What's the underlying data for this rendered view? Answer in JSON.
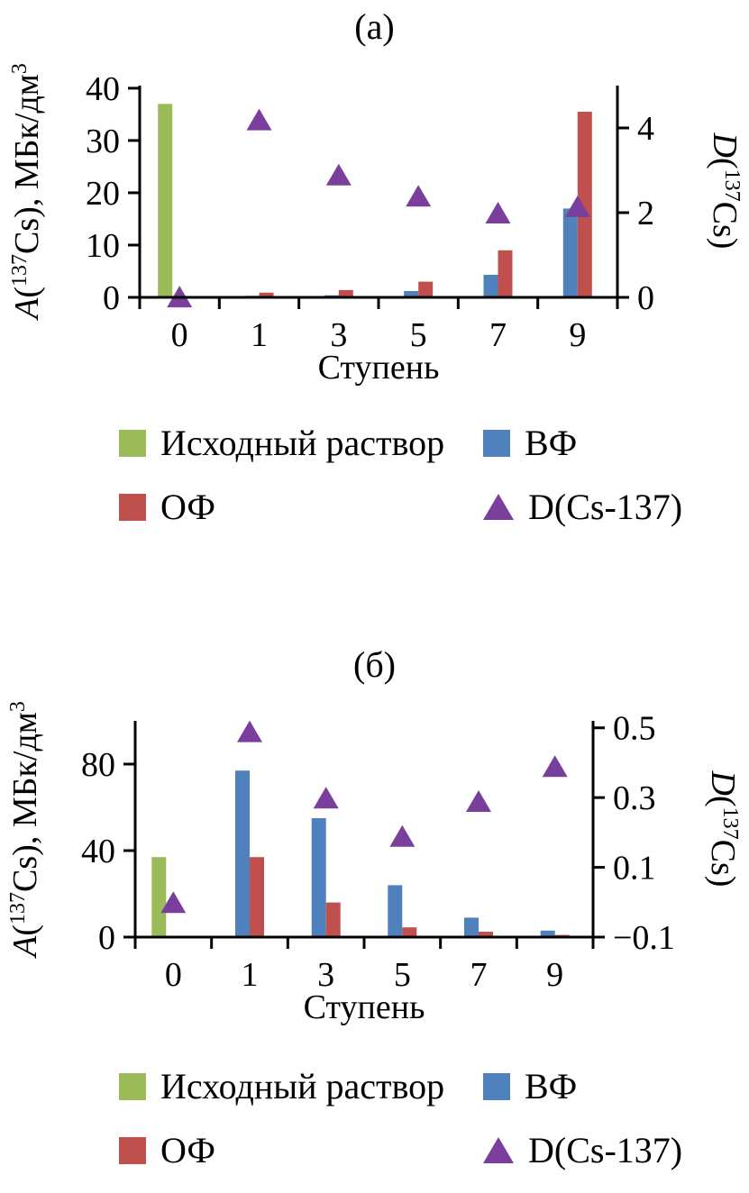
{
  "figure": {
    "background": "#ffffff",
    "text_color": "#000000",
    "axis_color": "#000000"
  },
  "chart_data": [
    {
      "type": "bar+scatter",
      "panel": "а",
      "title": "(а)",
      "xlabel": "Ступень",
      "categories": [
        "0",
        "1",
        "3",
        "5",
        "7",
        "9"
      ],
      "left_axis": {
        "label": "A(137Cs), МБк/дм3",
        "label_runs": [
          {
            "t": "A",
            "i": true
          },
          {
            "t": "("
          },
          {
            "t": "137",
            "sup": true
          },
          {
            "t": "Cs), МБк/дм"
          },
          {
            "t": "3",
            "sup": true
          }
        ],
        "min": 0,
        "max": 40.5,
        "ticks": [
          {
            "v": 0,
            "t": "0"
          },
          {
            "v": 10,
            "t": "10"
          },
          {
            "v": 20,
            "t": "20"
          },
          {
            "v": 30,
            "t": "30"
          },
          {
            "v": 40,
            "t": "40"
          }
        ]
      },
      "right_axis": {
        "label": "D(137Cs)",
        "label_runs": [
          {
            "t": "D",
            "i": true
          },
          {
            "t": "("
          },
          {
            "t": "137",
            "sup": true
          },
          {
            "t": "Cs)"
          }
        ],
        "min": 0,
        "max": 5,
        "ticks": [
          {
            "v": 0,
            "t": "0"
          },
          {
            "v": 2,
            "t": "2"
          },
          {
            "v": 4,
            "t": "4"
          }
        ]
      },
      "bar_series": [
        {
          "name": "Исходный раствор",
          "color": "#9bbb59",
          "axis": "left",
          "values": [
            37,
            null,
            null,
            null,
            null,
            null
          ]
        },
        {
          "name": "ВФ",
          "color": "#4f81bd",
          "axis": "left",
          "values": [
            0.2,
            0.3,
            0.4,
            1.2,
            4.3,
            17
          ]
        },
        {
          "name": "ОФ",
          "color": "#c0504d",
          "axis": "left",
          "values": [
            0.2,
            0.9,
            1.4,
            3,
            9,
            35.5
          ]
        }
      ],
      "scatter_series": [
        {
          "name": "D(Cs-137)",
          "color": "#7a3f9d",
          "axis": "right",
          "values": [
            0.02,
            4.2,
            2.9,
            2.4,
            2.0,
            2.15
          ]
        }
      ],
      "legend": [
        {
          "label": "Исходный раствор",
          "marker": "square",
          "color": "#9bbb59"
        },
        {
          "label": "ВФ",
          "marker": "square",
          "color": "#4f81bd"
        },
        {
          "label": "ОФ",
          "marker": "square",
          "color": "#c0504d"
        },
        {
          "label": "D(Cs-137)",
          "marker": "triangle",
          "color": "#7a3f9d"
        }
      ]
    },
    {
      "type": "bar+scatter",
      "panel": "б",
      "title": "(б)",
      "xlabel": "Ступень",
      "categories": [
        "0",
        "1",
        "3",
        "5",
        "7",
        "9"
      ],
      "left_axis": {
        "label": "A(137Cs), МБк/дм3",
        "label_runs": [
          {
            "t": "A",
            "i": true
          },
          {
            "t": "("
          },
          {
            "t": "137",
            "sup": true
          },
          {
            "t": "Cs), МБк/дм"
          },
          {
            "t": "3",
            "sup": true
          }
        ],
        "min": 0,
        "max": 100,
        "ticks": [
          {
            "v": 0,
            "t": "0"
          },
          {
            "v": 40,
            "t": "40"
          },
          {
            "v": 80,
            "t": "80"
          }
        ]
      },
      "right_axis": {
        "label": "D(137Cs)",
        "label_runs": [
          {
            "t": "D",
            "i": true
          },
          {
            "t": "("
          },
          {
            "t": "137",
            "sup": true
          },
          {
            "t": "Cs)"
          }
        ],
        "min": -0.1,
        "max": 0.52,
        "ticks": [
          {
            "v": -0.1,
            "t": "−0.1"
          },
          {
            "v": 0.1,
            "t": "0.1"
          },
          {
            "v": 0.3,
            "t": "0.3"
          },
          {
            "v": 0.5,
            "t": "0.5"
          }
        ]
      },
      "bar_series": [
        {
          "name": "Исходный раствор",
          "color": "#9bbb59",
          "axis": "left",
          "values": [
            37,
            null,
            null,
            null,
            null,
            null
          ]
        },
        {
          "name": "ВФ",
          "color": "#4f81bd",
          "axis": "left",
          "values": [
            0.5,
            77,
            55,
            24,
            9,
            3
          ]
        },
        {
          "name": "ОФ",
          "color": "#c0504d",
          "axis": "left",
          "values": [
            0.5,
            37,
            16,
            4.5,
            2.5,
            1
          ]
        }
      ],
      "scatter_series": [
        {
          "name": "D(Cs-137)",
          "color": "#7a3f9d",
          "axis": "right",
          "values": [
            0.0,
            0.49,
            0.3,
            0.19,
            0.29,
            0.39
          ]
        }
      ],
      "legend": [
        {
          "label": "Исходный раствор",
          "marker": "square",
          "color": "#9bbb59"
        },
        {
          "label": "ВФ",
          "marker": "square",
          "color": "#4f81bd"
        },
        {
          "label": "ОФ",
          "marker": "square",
          "color": "#c0504d"
        },
        {
          "label": "D(Cs-137)",
          "marker": "triangle",
          "color": "#7a3f9d"
        }
      ]
    }
  ]
}
